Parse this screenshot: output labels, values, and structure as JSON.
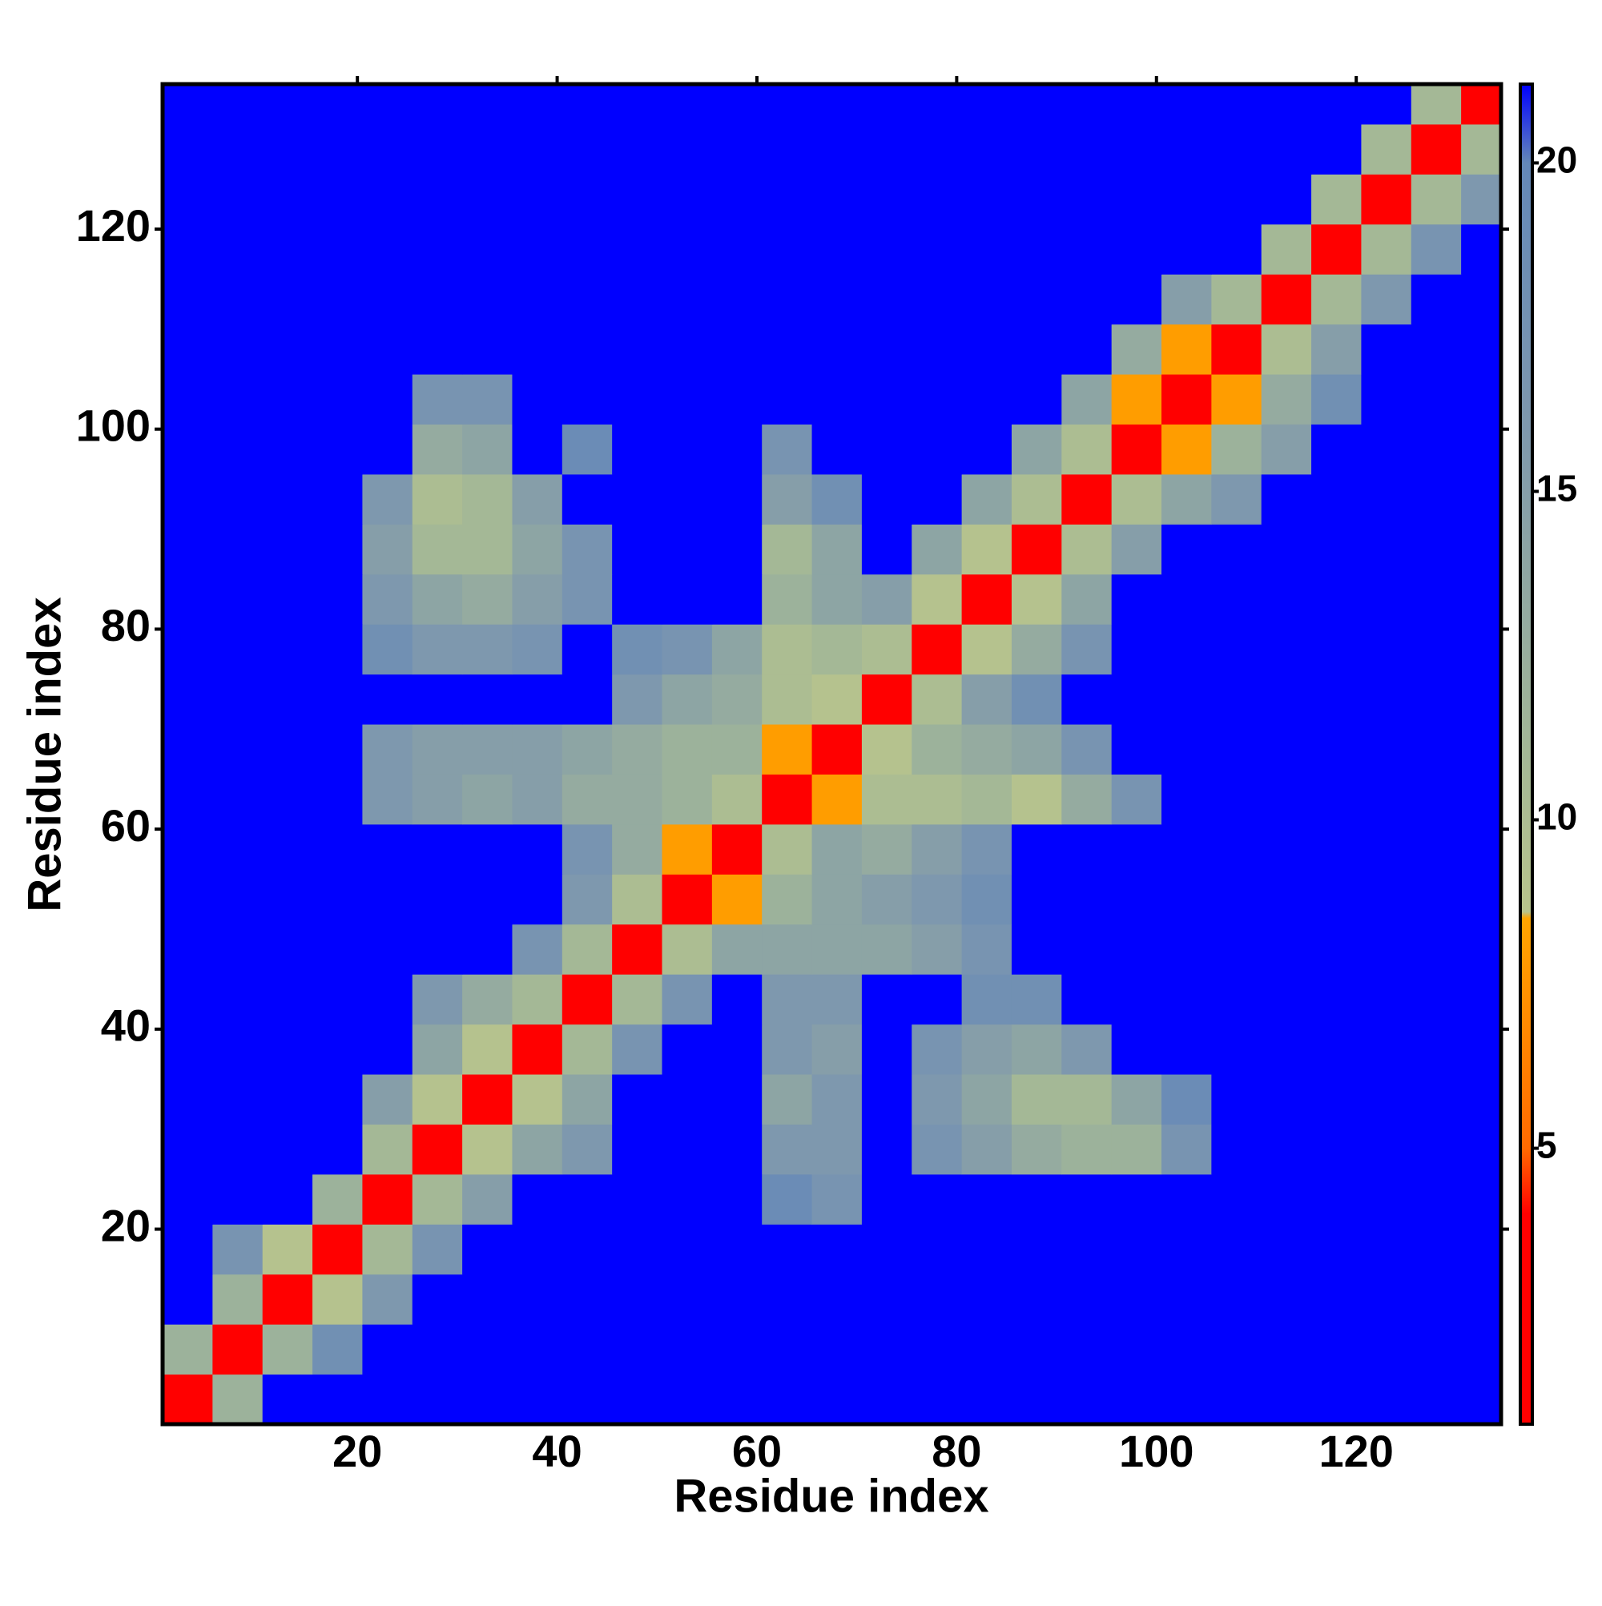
{
  "chart_data": {
    "type": "heatmap",
    "x_label": "Residue index",
    "y_label": "Residue index",
    "x": [
      3,
      8,
      13,
      18,
      23,
      28,
      33,
      38,
      43,
      48,
      53,
      58,
      63,
      68,
      73,
      78,
      83,
      88,
      93,
      98,
      103,
      108,
      113,
      118,
      123,
      128,
      133
    ],
    "y": [
      3,
      8,
      13,
      18,
      23,
      28,
      33,
      38,
      43,
      48,
      53,
      58,
      63,
      68,
      73,
      78,
      83,
      88,
      93,
      98,
      103,
      108,
      113,
      118,
      123,
      128,
      133
    ],
    "z": [
      [
        3,
        12,
        22,
        22,
        22,
        22,
        22,
        22,
        22,
        22,
        22,
        22,
        22,
        22,
        22,
        22,
        22,
        22,
        22,
        22,
        22,
        22,
        22,
        22,
        22,
        22,
        22
      ],
      [
        12,
        3,
        12,
        18,
        22,
        22,
        22,
        22,
        22,
        22,
        22,
        22,
        22,
        22,
        22,
        22,
        22,
        22,
        22,
        22,
        22,
        22,
        22,
        22,
        22,
        22,
        22
      ],
      [
        22,
        12,
        3,
        9,
        16,
        22,
        22,
        22,
        22,
        22,
        22,
        22,
        22,
        22,
        22,
        22,
        22,
        22,
        22,
        22,
        22,
        22,
        22,
        22,
        22,
        22,
        22
      ],
      [
        22,
        17,
        9,
        3,
        11,
        17,
        22,
        22,
        22,
        22,
        22,
        22,
        22,
        22,
        22,
        22,
        22,
        22,
        22,
        22,
        22,
        22,
        22,
        22,
        22,
        22,
        22
      ],
      [
        22,
        22,
        22,
        12,
        3,
        11,
        15,
        22,
        22,
        22,
        22,
        22,
        19,
        17,
        22,
        22,
        22,
        22,
        22,
        22,
        22,
        22,
        22,
        22,
        22,
        22,
        22
      ],
      [
        22,
        22,
        22,
        22,
        11,
        3,
        9,
        14,
        16,
        22,
        22,
        22,
        16,
        16,
        22,
        17,
        15,
        13,
        12,
        12,
        17,
        22,
        22,
        22,
        22,
        22,
        22
      ],
      [
        22,
        22,
        22,
        22,
        15,
        9,
        3,
        9,
        14,
        22,
        22,
        22,
        14,
        16,
        22,
        16,
        14,
        11,
        11,
        14,
        19,
        22,
        22,
        22,
        22,
        22,
        22
      ],
      [
        22,
        22,
        22,
        22,
        22,
        14,
        9,
        3,
        11,
        17,
        22,
        22,
        16,
        15,
        22,
        17,
        15,
        14,
        16,
        22,
        22,
        22,
        22,
        22,
        22,
        22,
        22
      ],
      [
        22,
        22,
        22,
        22,
        22,
        16,
        13,
        11,
        3,
        11,
        17,
        22,
        16,
        16,
        22,
        22,
        18,
        18,
        22,
        22,
        22,
        22,
        22,
        22,
        22,
        22,
        22
      ],
      [
        22,
        22,
        22,
        22,
        22,
        22,
        22,
        17,
        11,
        3,
        10,
        14,
        14,
        14,
        14,
        15,
        17,
        22,
        22,
        22,
        22,
        22,
        22,
        22,
        22,
        22,
        22
      ],
      [
        22,
        22,
        22,
        22,
        22,
        22,
        22,
        22,
        16,
        10,
        3,
        8,
        12,
        14,
        15,
        16,
        18,
        22,
        22,
        22,
        22,
        22,
        22,
        22,
        22,
        22,
        22
      ],
      [
        22,
        22,
        22,
        22,
        22,
        22,
        22,
        22,
        17,
        13,
        8,
        3,
        10,
        14,
        13,
        15,
        17,
        22,
        22,
        22,
        22,
        22,
        22,
        22,
        22,
        22,
        22
      ],
      [
        22,
        22,
        22,
        22,
        16,
        15,
        14,
        15,
        13,
        13,
        12,
        10,
        3,
        8,
        10,
        10,
        11,
        9,
        13,
        17,
        22,
        22,
        22,
        22,
        22,
        22,
        22
      ],
      [
        22,
        22,
        22,
        22,
        16,
        15,
        15,
        15,
        14,
        13,
        12,
        12,
        8,
        3,
        9,
        12,
        13,
        14,
        17,
        22,
        22,
        22,
        22,
        22,
        22,
        22,
        22
      ],
      [
        22,
        22,
        22,
        22,
        22,
        22,
        22,
        22,
        22,
        16,
        14,
        13,
        10,
        9,
        3,
        10,
        15,
        18,
        22,
        22,
        22,
        22,
        22,
        22,
        22,
        22,
        22
      ],
      [
        22,
        22,
        22,
        22,
        18,
        16,
        16,
        17,
        22,
        18,
        17,
        14,
        10,
        11,
        10,
        3,
        9,
        13,
        17,
        22,
        22,
        22,
        22,
        22,
        22,
        22,
        22
      ],
      [
        22,
        22,
        22,
        22,
        16,
        14,
        13,
        15,
        17,
        22,
        22,
        22,
        12,
        14,
        15,
        9,
        3,
        9,
        14,
        22,
        22,
        22,
        22,
        22,
        22,
        22,
        22
      ],
      [
        22,
        22,
        22,
        22,
        15,
        11,
        11,
        14,
        17,
        22,
        22,
        22,
        11,
        14,
        22,
        14,
        9,
        3,
        10,
        15,
        22,
        22,
        22,
        22,
        22,
        22,
        22
      ],
      [
        22,
        22,
        22,
        22,
        16,
        10,
        11,
        15,
        22,
        22,
        22,
        22,
        15,
        18,
        22,
        22,
        14,
        10,
        3,
        10,
        14,
        16,
        22,
        22,
        22,
        22,
        22
      ],
      [
        22,
        22,
        22,
        22,
        22,
        13,
        14,
        22,
        19,
        22,
        22,
        22,
        17,
        22,
        22,
        22,
        22,
        14,
        10,
        3,
        8,
        12,
        15,
        22,
        22,
        22,
        22
      ],
      [
        22,
        22,
        22,
        22,
        22,
        17,
        17,
        22,
        22,
        22,
        22,
        22,
        22,
        22,
        22,
        22,
        22,
        22,
        14,
        8,
        3,
        8,
        13,
        18,
        22,
        22,
        22
      ],
      [
        22,
        22,
        22,
        22,
        22,
        22,
        22,
        22,
        22,
        22,
        22,
        22,
        22,
        22,
        22,
        22,
        22,
        22,
        22,
        13,
        8,
        3,
        10,
        15,
        22,
        22,
        22
      ],
      [
        22,
        22,
        22,
        22,
        22,
        22,
        22,
        22,
        22,
        22,
        22,
        22,
        22,
        22,
        22,
        22,
        22,
        22,
        22,
        22,
        15,
        11,
        3,
        11,
        16,
        22,
        22
      ],
      [
        22,
        22,
        22,
        22,
        22,
        22,
        22,
        22,
        22,
        22,
        22,
        22,
        22,
        22,
        22,
        22,
        22,
        22,
        22,
        22,
        22,
        22,
        11,
        3,
        11,
        17,
        22
      ],
      [
        22,
        22,
        22,
        22,
        22,
        22,
        22,
        22,
        22,
        22,
        22,
        22,
        22,
        22,
        22,
        22,
        22,
        22,
        22,
        22,
        22,
        22,
        22,
        11,
        3,
        11,
        16
      ],
      [
        22,
        22,
        22,
        22,
        22,
        22,
        22,
        22,
        22,
        22,
        22,
        22,
        22,
        22,
        22,
        22,
        22,
        22,
        22,
        22,
        22,
        22,
        22,
        22,
        11,
        3,
        11
      ],
      [
        22,
        22,
        22,
        22,
        22,
        22,
        22,
        22,
        22,
        22,
        22,
        22,
        22,
        22,
        22,
        22,
        22,
        22,
        22,
        22,
        22,
        22,
        22,
        22,
        22,
        11,
        3
      ]
    ],
    "xlim": [
      0.5,
      134.5
    ],
    "ylim": [
      0.5,
      134.5
    ],
    "xticks": [
      20,
      40,
      60,
      80,
      100,
      120
    ],
    "yticks": [
      20,
      40,
      60,
      80,
      100,
      120
    ],
    "colorbar_lim": [
      0.8,
      21.2
    ],
    "colorbar_ticks": [
      5,
      10,
      15,
      20
    ],
    "colorscale": [
      [
        0.8,
        "#ff0000"
      ],
      [
        4,
        "#ff0000"
      ],
      [
        5,
        "#ff6a00"
      ],
      [
        8.5,
        "#ffa500"
      ],
      [
        8.6,
        "#b8c48c"
      ],
      [
        11,
        "#a4b896"
      ],
      [
        16,
        "#7e98ae"
      ],
      [
        20,
        "#6488b8"
      ],
      [
        21.2,
        "#0000ff"
      ]
    ]
  }
}
